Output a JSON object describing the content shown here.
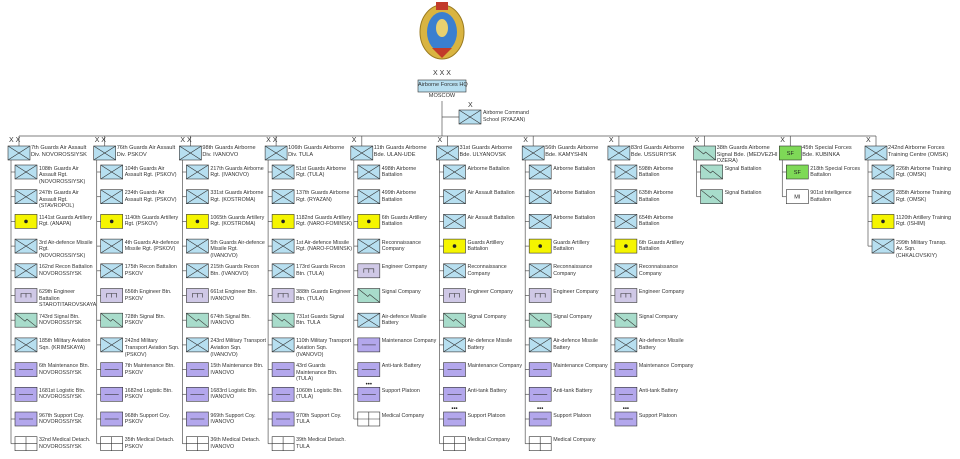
{
  "hq": {
    "echelon": "X X X",
    "name": "Airborne Forces HQ",
    "location": "MOSCOW"
  },
  "school": {
    "echelon": "X",
    "name": "Airborne Command School (RYAZAN)",
    "color": "#b7dff0"
  },
  "columns": [
    {
      "echelon": "X X",
      "name": "7th Guards Air Assault Div. NOVOROSSIYSK",
      "color": "#b7dff0",
      "units": [
        {
          "name": "108th Guards Air Assault Rgt. (NOVOROSSIYSK)",
          "color": "#b7dff0"
        },
        {
          "name": "247th Guards Air Assault Rgt. (STAVROPOL)",
          "color": "#b7dff0"
        },
        {
          "name": "1141st Guards Artillery Rgt. (ANAPA)",
          "color": "#f5f500"
        },
        {
          "name": "3rd Air-defence Missile Rgt. (NOVOROSSIYSK)",
          "color": "#b7dff0"
        },
        {
          "name": "162nd Recon Battalion NOVOROSSIYSK",
          "color": "#b7dff0"
        },
        {
          "name": "629th Engineer Battalion STAROTITAROVSKAYA",
          "color": "#cfc8e6"
        },
        {
          "name": "743rd Signal Btn. NOVOROSSIYSK",
          "color": "#a8dccb"
        },
        {
          "name": "185th Military Aviation Sqn. (KRIMSKAYA)",
          "color": "#b7dff0"
        },
        {
          "name": "6th Maintenance Btn. NOVOROSSIYSK",
          "color": "#b3a7ec"
        },
        {
          "name": "1681st Logistic Btn. NOVOROSSIYSK",
          "color": "#b3a7ec"
        },
        {
          "name": "967th Support Coy. NOVOROSSIYSK",
          "color": "#b3a7ec"
        },
        {
          "name": "32nd Medical Detach. NOVOROSSIYSK",
          "color": "#ffffff"
        }
      ]
    },
    {
      "echelon": "X X",
      "name": "76th Guards Air Assault Div. PSKOV",
      "color": "#b7dff0",
      "units": [
        {
          "name": "104th Guards Air Assault Rgt. (PSKOV)",
          "color": "#b7dff0"
        },
        {
          "name": "234th Guards Air Assault Rgt. (PSKOV)",
          "color": "#b7dff0"
        },
        {
          "name": "1140th Guards Artillery Rgt. (PSKOV)",
          "color": "#f5f500"
        },
        {
          "name": "4th Guards Air-defence Missile Rgt. (PSKOV)",
          "color": "#b7dff0"
        },
        {
          "name": "175th Recon Battalion PSKOV",
          "color": "#b7dff0"
        },
        {
          "name": "656th Engineer Btn. PSKOV",
          "color": "#cfc8e6"
        },
        {
          "name": "728th Signal Btn. PSKOV",
          "color": "#a8dccb"
        },
        {
          "name": "242nd Military Transport Aviation Sqn. (PSKOV)",
          "color": "#b7dff0"
        },
        {
          "name": "7th Maintenance Btn. PSKOV",
          "color": "#b3a7ec"
        },
        {
          "name": "1682nd Logistic Btn. PSKOV",
          "color": "#b3a7ec"
        },
        {
          "name": "968th Support Coy. PSKOV",
          "color": "#b3a7ec"
        },
        {
          "name": "35th Medical Detach. PSKOV",
          "color": "#ffffff"
        }
      ]
    },
    {
      "echelon": "X X",
      "name": "98th Guards Airborne Div. IVANOVO",
      "color": "#b7dff0",
      "units": [
        {
          "name": "217th Guards Airborne Rgt. (IVANOVO)",
          "color": "#b7dff0"
        },
        {
          "name": "331st Guards Airborne Rgt. (KOSTROMA)",
          "color": "#b7dff0"
        },
        {
          "name": "1065th Guards Artillery Rgt. (KOSTROMA)",
          "color": "#f5f500"
        },
        {
          "name": "5th Guards Air-defence Missile Rgt. (IVANOVO)",
          "color": "#b7dff0"
        },
        {
          "name": "215th Guards Recon Btn. (IVANOVO)",
          "color": "#b7dff0"
        },
        {
          "name": "661st Engineer Btn. IVANOVO",
          "color": "#cfc8e6"
        },
        {
          "name": "674th Signal Btn. IVANOVO",
          "color": "#a8dccb"
        },
        {
          "name": "243rd Military Transport Aviation Sqn. (IVANOVO)",
          "color": "#b7dff0"
        },
        {
          "name": "15th Maintenance Btn. IVANOVO",
          "color": "#b3a7ec"
        },
        {
          "name": "1683rd Logistic Btn. IVANOVO",
          "color": "#b3a7ec"
        },
        {
          "name": "969th Support Coy. IVANOVO",
          "color": "#b3a7ec"
        },
        {
          "name": "36th Medical Detach. IVANOVO",
          "color": "#ffffff"
        }
      ]
    },
    {
      "echelon": "X X",
      "name": "106th Guards Airborne Div. TULA",
      "color": "#b7dff0",
      "units": [
        {
          "name": "51st Guards Airborne Rgt. (TULA)",
          "color": "#b7dff0"
        },
        {
          "name": "137th Guards Airborne Rgt. (RYAZAN)",
          "color": "#b7dff0"
        },
        {
          "name": "1182nd Guards Artillery Rgt. (NARO-FOMINSK)",
          "color": "#f5f500"
        },
        {
          "name": "1st Air-defence Missile Rgt. (NARO-FOMINSK)",
          "color": "#b7dff0"
        },
        {
          "name": "173rd Guards Recon Btn. (TULA)",
          "color": "#b7dff0"
        },
        {
          "name": "388th Guards Engineer Btn. (TULA)",
          "color": "#cfc8e6"
        },
        {
          "name": "731st Guards Signal Btn. TULA",
          "color": "#a8dccb"
        },
        {
          "name": "110th Military Transport Aviation Sqn. (IVANOVO)",
          "color": "#b7dff0"
        },
        {
          "name": "43rd Guards Maintenance Btn. (TULA)",
          "color": "#b3a7ec"
        },
        {
          "name": "1060th Logistic Btn. (TULA)",
          "color": "#b3a7ec"
        },
        {
          "name": "970th Support Coy. TULA",
          "color": "#b3a7ec"
        },
        {
          "name": "39th Medical Detach. TULA",
          "color": "#ffffff"
        }
      ]
    },
    {
      "echelon": "X",
      "name": "11th Guards Airborne Bde. ULAN-UDE",
      "color": "#b7dff0",
      "units": [
        {
          "name": "498th Airborne Battalion",
          "color": "#b7dff0"
        },
        {
          "name": "499th Airborne Battalion",
          "color": "#b7dff0"
        },
        {
          "name": "6th Guards Artillery Battalion",
          "color": "#f5f500"
        },
        {
          "name": "Reconnaissance Company",
          "color": "#b7dff0"
        },
        {
          "name": "Engineer Company",
          "color": "#cfc8e6"
        },
        {
          "name": "Signal Company",
          "color": "#a8dccb"
        },
        {
          "name": "Air-defence Missile Battery",
          "color": "#b7dff0"
        },
        {
          "name": "Maintenance Company",
          "color": "#b3a7ec"
        },
        {
          "name": "Anti-tank Battery",
          "color": "#b3a7ec"
        },
        {
          "name": "Support Platoon",
          "color": "#b3a7ec",
          "echelon": "•••"
        },
        {
          "name": "Medical Company",
          "color": "#ffffff"
        }
      ]
    },
    {
      "echelon": "X",
      "name": "31st Guards Airborne Bde. ULYANOVSK",
      "color": "#b7dff0",
      "units": [
        {
          "name": "Airborne Battalion",
          "color": "#b7dff0"
        },
        {
          "name": "Air Assault Battalion",
          "color": "#b7dff0"
        },
        {
          "name": "Air Assault Battalion",
          "color": "#b7dff0"
        },
        {
          "name": "Guards Artillery Battalion",
          "color": "#f5f500"
        },
        {
          "name": "Reconnaissance Company",
          "color": "#b7dff0"
        },
        {
          "name": "Engineer Company",
          "color": "#cfc8e6"
        },
        {
          "name": "Signal Company",
          "color": "#a8dccb"
        },
        {
          "name": "Air-defence Missile Battery",
          "color": "#b7dff0"
        },
        {
          "name": "Maintenance Company",
          "color": "#b3a7ec"
        },
        {
          "name": "Anti-tank Battery",
          "color": "#b3a7ec"
        },
        {
          "name": "Support Platoon",
          "color": "#b3a7ec",
          "echelon": "•••"
        },
        {
          "name": "Medical Company",
          "color": "#ffffff"
        }
      ]
    },
    {
      "echelon": "X",
      "name": "56th Guards Airborne Bde. KAMYSHIN",
      "color": "#b7dff0",
      "units": [
        {
          "name": "Airborne Battalion",
          "color": "#b7dff0"
        },
        {
          "name": "Airborne Battalion",
          "color": "#b7dff0"
        },
        {
          "name": "Airborne Battalion",
          "color": "#b7dff0"
        },
        {
          "name": "Guards Artillery Battalion",
          "color": "#f5f500"
        },
        {
          "name": "Reconnaissance Company",
          "color": "#b7dff0"
        },
        {
          "name": "Engineer Company",
          "color": "#cfc8e6"
        },
        {
          "name": "Signal Company",
          "color": "#a8dccb"
        },
        {
          "name": "Air-defence Missile Battery",
          "color": "#b7dff0"
        },
        {
          "name": "Maintenance Company",
          "color": "#b3a7ec"
        },
        {
          "name": "Anti-tank Battery",
          "color": "#b3a7ec"
        },
        {
          "name": "Support Platoon",
          "color": "#b3a7ec",
          "echelon": "•••"
        },
        {
          "name": "Medical Company",
          "color": "#ffffff"
        }
      ]
    },
    {
      "echelon": "X",
      "name": "83rd Guards Airborne Bde. USSURIYSK",
      "color": "#b7dff0",
      "units": [
        {
          "name": "598th Airborne Battalion",
          "color": "#b7dff0"
        },
        {
          "name": "635th Airborne Battalion",
          "color": "#b7dff0"
        },
        {
          "name": "654th Airborne Battalion",
          "color": "#b7dff0"
        },
        {
          "name": "6th Guards Artillery Battalion",
          "color": "#f5f500"
        },
        {
          "name": "Reconnaissance Company",
          "color": "#b7dff0"
        },
        {
          "name": "Engineer Company",
          "color": "#cfc8e6"
        },
        {
          "name": "Signal Company",
          "color": "#a8dccb"
        },
        {
          "name": "Air-defence Missile Battery",
          "color": "#b7dff0"
        },
        {
          "name": "Maintenance Company",
          "color": "#b3a7ec"
        },
        {
          "name": "Anti-tank Battery",
          "color": "#b3a7ec"
        },
        {
          "name": "Support Platoon",
          "color": "#b3a7ec",
          "echelon": "•••"
        }
      ]
    },
    {
      "echelon": "X",
      "name": "38th Guards Airborne Signal Bde. (MEDVEZHI OZERA)",
      "color": "#a8dccb",
      "units": [
        {
          "name": "Signal Battalion",
          "color": "#a8dccb"
        },
        {
          "name": "Signal Battalion",
          "color": "#a8dccb"
        }
      ]
    },
    {
      "echelon": "X",
      "name": "45th Special Forces Bde. KUBINKA",
      "color": "#7ed957",
      "symbol_text": "SF",
      "units": [
        {
          "name": "218th Special Forces Battalion",
          "color": "#7ed957",
          "symbol_text": "SF"
        },
        {
          "name": "901st Intelligence Battalion",
          "color": "#ffffff",
          "symbol_text": "MI"
        }
      ]
    },
    {
      "echelon": "X",
      "name": "242nd Airborne Forces Training Centre (OMSK)",
      "color": "#b7dff0",
      "units": [
        {
          "name": "226th Airborne Training Rgt. (OMSK)",
          "color": "#b7dff0"
        },
        {
          "name": "285th Airborne Training Rgt. (OMSK)",
          "color": "#b7dff0"
        },
        {
          "name": "1120th Artillery Training Rgt. (ISHIM)",
          "color": "#f5f500"
        },
        {
          "name": "299th Military Transp. Av. Sqn. (CHKALOVSKIY)",
          "color": "#b7dff0"
        }
      ]
    }
  ]
}
